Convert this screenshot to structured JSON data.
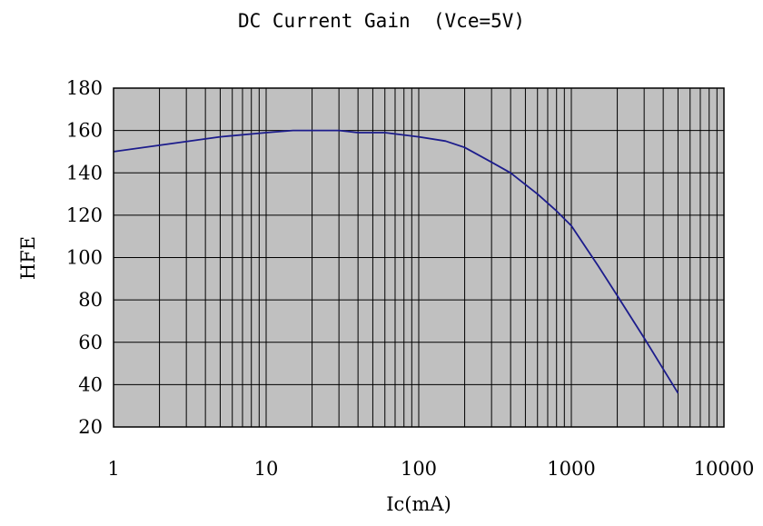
{
  "chart_data": {
    "type": "line",
    "title": "DC Current Gain  (Vce=5V)",
    "xlabel": "Ic(mA)",
    "ylabel": "HFE",
    "x_scale": "log",
    "xlim": [
      1,
      10000
    ],
    "ylim": [
      20,
      180
    ],
    "x_ticks": [
      "1",
      "10",
      "100",
      "1000",
      "10000"
    ],
    "y_ticks": [
      "20",
      "40",
      "60",
      "80",
      "100",
      "120",
      "140",
      "160",
      "180"
    ],
    "grid": true,
    "plot_background": "#c0c0c0",
    "series": [
      {
        "color": "#1c1c8c",
        "x": [
          1,
          2,
          5,
          10,
          15,
          20,
          30,
          40,
          60,
          100,
          150,
          200,
          300,
          400,
          600,
          800,
          1000,
          1500,
          2000,
          3000,
          5000
        ],
        "y": [
          150,
          153,
          157,
          159,
          160,
          160,
          160,
          159,
          159,
          157,
          155,
          152,
          145,
          140,
          130,
          122,
          115,
          96,
          82,
          62,
          36
        ]
      }
    ]
  }
}
